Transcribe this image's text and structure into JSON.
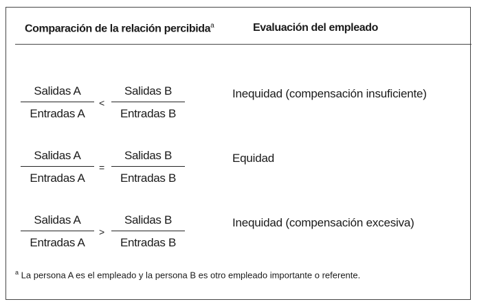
{
  "header": {
    "col1": "Comparación de la relación percibida",
    "col1_marker": "a",
    "col2": "Evaluación del empleado"
  },
  "rows": [
    {
      "left_num": "Salidas A",
      "left_den": "Entradas A",
      "operator": "<",
      "right_num": "Salidas B",
      "right_den": "Entradas B",
      "evaluation": "Inequidad (compensación insuficiente)"
    },
    {
      "left_num": "Salidas A",
      "left_den": "Entradas A",
      "operator": "=",
      "right_num": "Salidas B",
      "right_den": "Entradas B",
      "evaluation": "Equidad"
    },
    {
      "left_num": "Salidas A",
      "left_den": "Entradas A",
      "operator": ">",
      "right_num": "Salidas B",
      "right_den": "Entradas B",
      "evaluation": "Inequidad (compensación excesiva)"
    }
  ],
  "footnote": {
    "marker": "a",
    "text": "La persona A es el empleado y la persona B es otro empleado importante o referente."
  }
}
